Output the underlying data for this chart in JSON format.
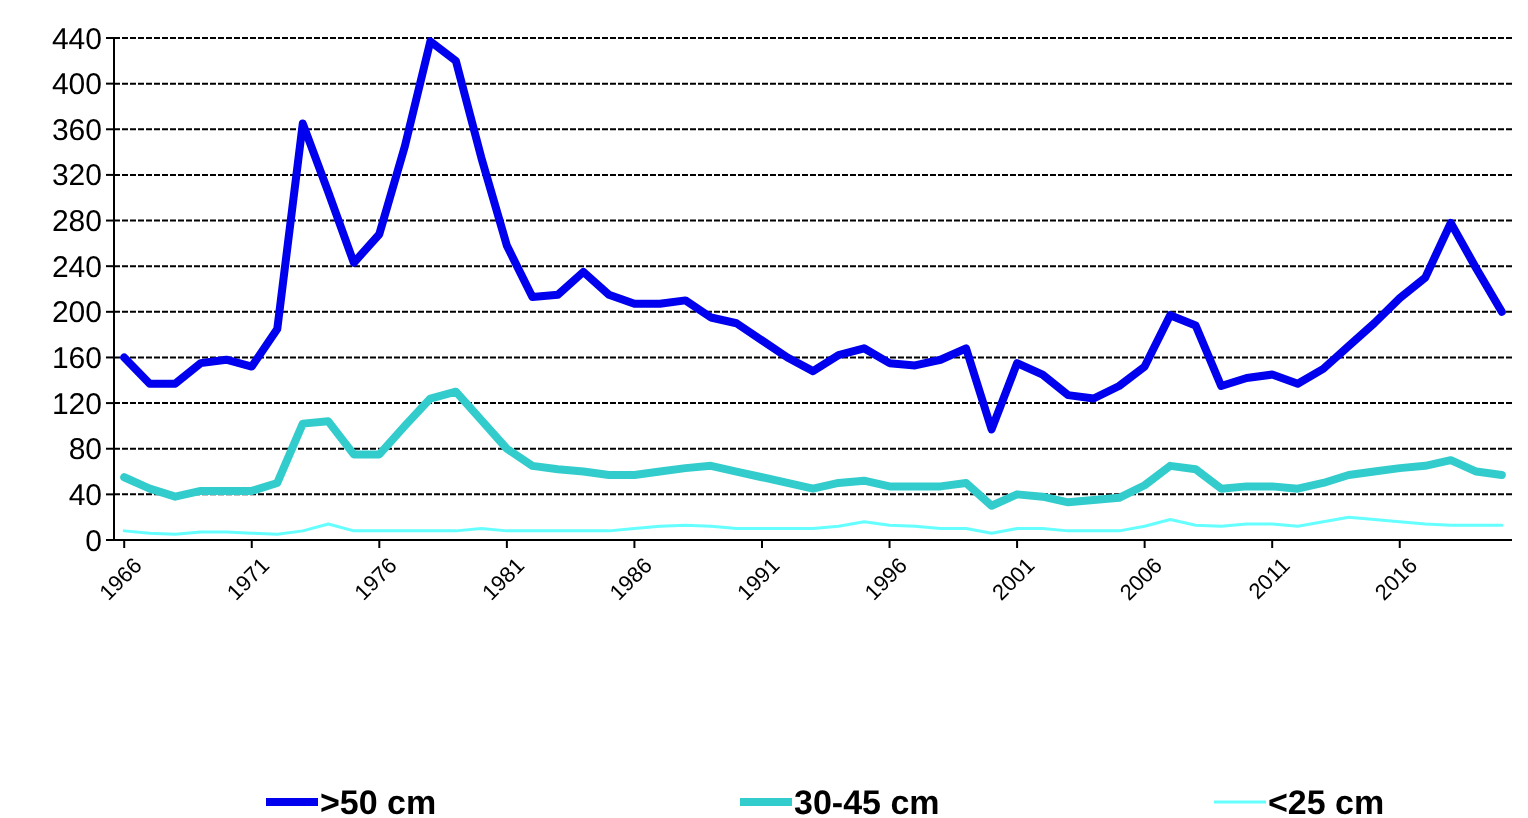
{
  "chart_data": {
    "type": "line",
    "x": [
      1966,
      1967,
      1968,
      1969,
      1970,
      1971,
      1972,
      1973,
      1974,
      1975,
      1976,
      1977,
      1978,
      1979,
      1980,
      1981,
      1982,
      1983,
      1984,
      1985,
      1986,
      1987,
      1988,
      1989,
      1990,
      1991,
      1992,
      1993,
      1994,
      1995,
      1996,
      1997,
      1998,
      1999,
      2000,
      2001,
      2002,
      2003,
      2004,
      2005,
      2006,
      2007,
      2008,
      2009,
      2010,
      2011,
      2012,
      2013,
      2014,
      2015,
      2016,
      2017,
      2018,
      2019,
      2020
    ],
    "series": [
      {
        "name": ">50 cm",
        "color": "#0000ee",
        "values": [
          160,
          137,
          137,
          155,
          158,
          152,
          185,
          365,
          305,
          243,
          268,
          345,
          437,
          420,
          335,
          258,
          213,
          215,
          235,
          215,
          207,
          207,
          210,
          195,
          190,
          175,
          160,
          148,
          162,
          168,
          155,
          153,
          158,
          168,
          97,
          155,
          145,
          127,
          124,
          135,
          152,
          197,
          188,
          135,
          142,
          145,
          137,
          150,
          170,
          190,
          212,
          230,
          278,
          238,
          200
        ]
      },
      {
        "name": "30-45 cm",
        "color": "#33cccc",
        "values": [
          55,
          45,
          38,
          43,
          43,
          43,
          50,
          102,
          104,
          75,
          75,
          100,
          124,
          130,
          105,
          80,
          65,
          62,
          60,
          57,
          57,
          60,
          63,
          65,
          60,
          55,
          50,
          45,
          50,
          52,
          47,
          47,
          47,
          50,
          30,
          40,
          38,
          33,
          35,
          37,
          48,
          65,
          62,
          45,
          47,
          47,
          45,
          50,
          57,
          60,
          63,
          65,
          70,
          60,
          57
        ]
      },
      {
        "name": "<25 cm",
        "color": "#66ffff",
        "values": [
          8,
          6,
          5,
          7,
          7,
          6,
          5,
          8,
          14,
          8,
          8,
          8,
          8,
          8,
          10,
          8,
          8,
          8,
          8,
          8,
          10,
          12,
          13,
          12,
          10,
          10,
          10,
          10,
          12,
          16,
          13,
          12,
          10,
          10,
          6,
          10,
          10,
          8,
          8,
          8,
          12,
          18,
          13,
          12,
          14,
          14,
          12,
          16,
          20,
          18,
          16,
          14,
          13,
          13,
          13
        ]
      }
    ],
    "xlim": [
      1965.6,
      2020.4
    ],
    "xticks": [
      1966,
      1971,
      1976,
      1981,
      1986,
      1991,
      1996,
      2001,
      2006,
      2011,
      2016
    ],
    "ylim": [
      0,
      440
    ],
    "yticks": [
      0,
      40,
      80,
      120,
      160,
      200,
      240,
      280,
      320,
      360,
      400,
      440
    ],
    "grid": "y",
    "legend": "bottom",
    "marker": "none",
    "line_style": "solid"
  }
}
